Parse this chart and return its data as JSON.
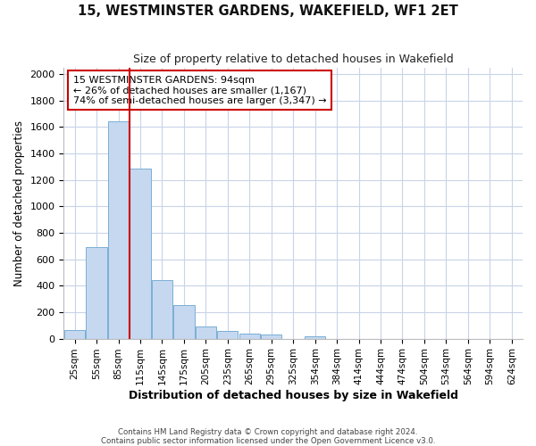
{
  "title": "15, WESTMINSTER GARDENS, WAKEFIELD, WF1 2ET",
  "subtitle": "Size of property relative to detached houses in Wakefield",
  "xlabel": "Distribution of detached houses by size in Wakefield",
  "ylabel": "Number of detached properties",
  "bar_labels": [
    "25sqm",
    "55sqm",
    "85sqm",
    "115sqm",
    "145sqm",
    "175sqm",
    "205sqm",
    "235sqm",
    "265sqm",
    "295sqm",
    "325sqm",
    "354sqm",
    "384sqm",
    "414sqm",
    "444sqm",
    "474sqm",
    "504sqm",
    "534sqm",
    "564sqm",
    "594sqm",
    "624sqm"
  ],
  "bar_values": [
    65,
    695,
    1640,
    1285,
    440,
    255,
    90,
    55,
    40,
    30,
    0,
    20,
    0,
    0,
    0,
    0,
    0,
    0,
    0,
    0,
    0
  ],
  "bar_color": "#c5d8f0",
  "bar_edge_color": "#7aafd4",
  "vline_color": "#cc0000",
  "vline_pos": 2.5,
  "annotation_text": "15 WESTMINSTER GARDENS: 94sqm\n← 26% of detached houses are smaller (1,167)\n74% of semi-detached houses are larger (3,347) →",
  "annotation_box_color": "#cc0000",
  "ylim": [
    0,
    2050
  ],
  "yticks": [
    0,
    200,
    400,
    600,
    800,
    1000,
    1200,
    1400,
    1600,
    1800,
    2000
  ],
  "footer_line1": "Contains HM Land Registry data © Crown copyright and database right 2024.",
  "footer_line2": "Contains public sector information licensed under the Open Government Licence v3.0.",
  "background_color": "#ffffff",
  "grid_color": "#c8d4e8"
}
